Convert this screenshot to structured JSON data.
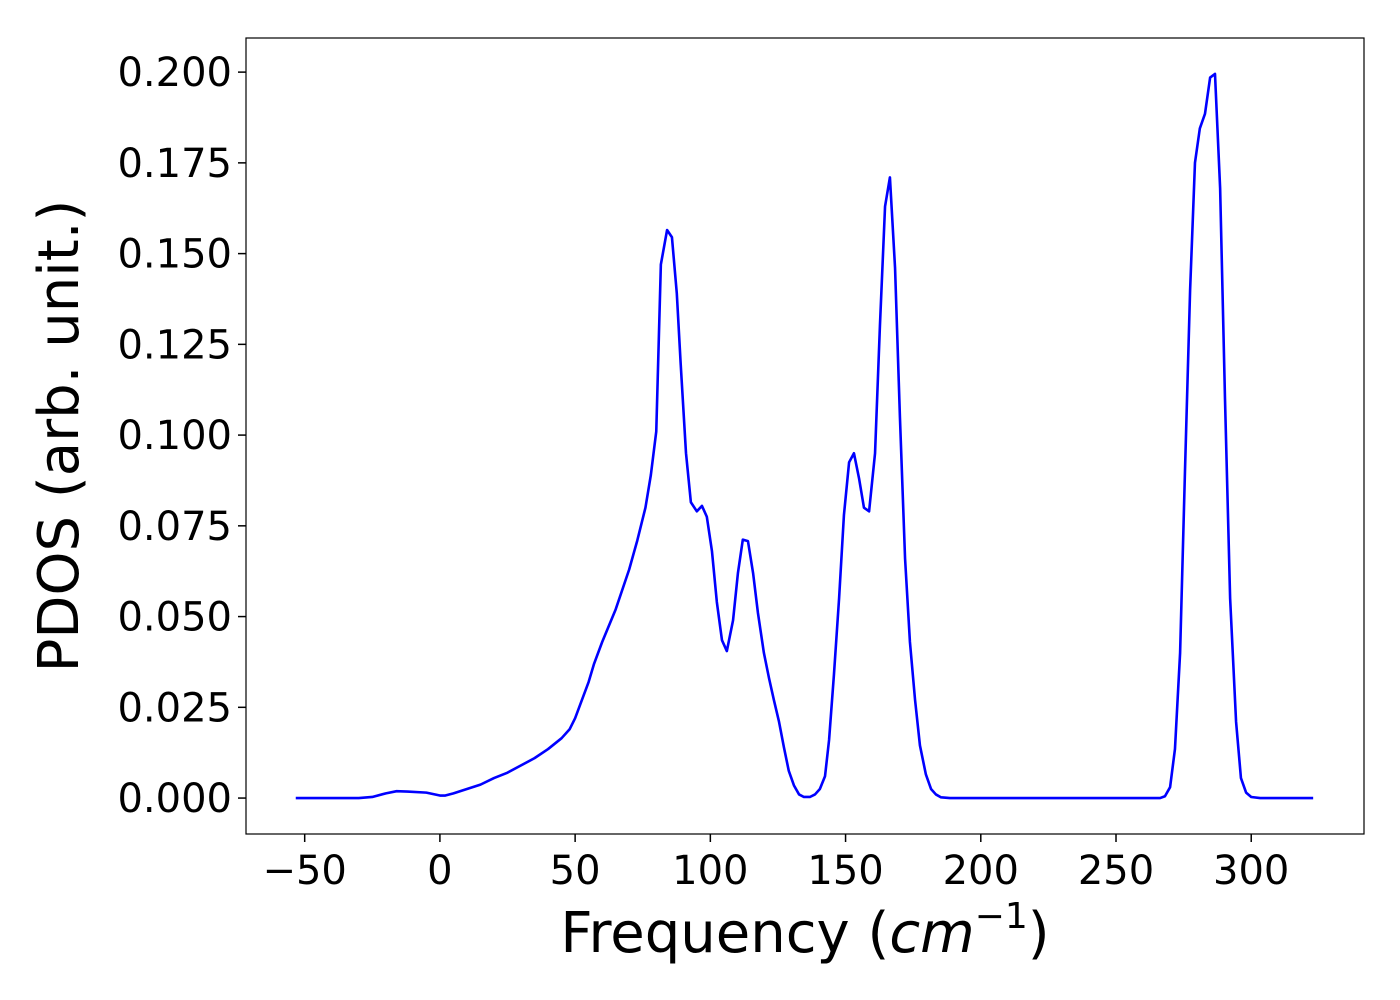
{
  "chart_data": {
    "type": "line",
    "xlabel": [
      "Frequency (",
      "cm",
      "−1",
      ")"
    ],
    "ylabel": "PDOS (arb. unit.)",
    "xlim": [
      -71.7,
      341.7
    ],
    "ylim": [
      -0.0099,
      0.2094
    ],
    "xticks": [
      {
        "value": -50,
        "label": "−50"
      },
      0,
      50,
      100,
      150,
      200,
      250,
      300
    ],
    "yticks": [
      {
        "value": 0,
        "label": "0.000"
      },
      {
        "value": 0.025,
        "label": "0.025"
      },
      {
        "value": 0.05,
        "label": "0.050"
      },
      {
        "value": 0.075,
        "label": "0.075"
      },
      {
        "value": 0.1,
        "label": "0.100"
      },
      {
        "value": 0.125,
        "label": "0.125"
      },
      {
        "value": 0.15,
        "label": "0.150"
      },
      {
        "value": 0.175,
        "label": "0.175"
      },
      {
        "value": 0.2,
        "label": "0.200"
      }
    ],
    "grid": false,
    "series": [
      {
        "color": "#0000ff",
        "x": [
          -53.3,
          -30,
          -25,
          -20,
          -16,
          -12,
          -5,
          0,
          2,
          5,
          10,
          15,
          20,
          25,
          30,
          35,
          40,
          45,
          48,
          50,
          52,
          55,
          57,
          60,
          65,
          70,
          73,
          76,
          78,
          80,
          81.7,
          84,
          85.8,
          87.6,
          89,
          91,
          92.8,
          95,
          96.9,
          98.7,
          100.6,
          102.4,
          104.3,
          106.1,
          108.4,
          110.2,
          112,
          113.9,
          115.8,
          117.6,
          119.8,
          121.7,
          123.5,
          125.4,
          127.2,
          129,
          130.9,
          132.8,
          134.6,
          136.8,
          138.7,
          140.5,
          142.4,
          143.9,
          145.7,
          147.6,
          149.4,
          151.3,
          153.1,
          155,
          156.8,
          158.7,
          160.9,
          162.7,
          164.6,
          166.4,
          168.3,
          170.1,
          172,
          173.8,
          175.7,
          177.5,
          179.7,
          181.6,
          183.4,
          185.3,
          188.6,
          266.3,
          268.1,
          270,
          271.8,
          273.7,
          275.5,
          277.4,
          279.2,
          281,
          282.9,
          284.8,
          286.6,
          288.5,
          290.3,
          292.2,
          294.4,
          296.2,
          298.1,
          300,
          303.3,
          322.9
        ],
        "values": [
          0,
          0,
          0.0003,
          0.0013,
          0.0019,
          0.0018,
          0.0015,
          0.0007,
          0.0007,
          0.0013,
          0.0025,
          0.0037,
          0.0055,
          0.007,
          0.009,
          0.011,
          0.0135,
          0.0165,
          0.019,
          0.022,
          0.026,
          0.032,
          0.037,
          0.043,
          0.052,
          0.063,
          0.071,
          0.08,
          0.089,
          0.101,
          0.147,
          0.1565,
          0.1545,
          0.139,
          0.12,
          0.095,
          0.0815,
          0.079,
          0.0805,
          0.0775,
          0.068,
          0.054,
          0.0435,
          0.0405,
          0.049,
          0.062,
          0.0712,
          0.0708,
          0.062,
          0.051,
          0.04,
          0.033,
          0.027,
          0.021,
          0.014,
          0.0075,
          0.0035,
          0.001,
          0.0003,
          0.0003,
          0.001,
          0.0025,
          0.006,
          0.016,
          0.034,
          0.055,
          0.078,
          0.0925,
          0.095,
          0.088,
          0.08,
          0.079,
          0.095,
          0.13,
          0.163,
          0.171,
          0.146,
          0.105,
          0.066,
          0.043,
          0.027,
          0.0145,
          0.0065,
          0.0025,
          0.001,
          0.0002,
          0,
          0,
          0.0005,
          0.003,
          0.0135,
          0.04,
          0.09,
          0.14,
          0.175,
          0.1845,
          0.1885,
          0.1985,
          0.1995,
          0.168,
          0.11,
          0.055,
          0.021,
          0.0055,
          0.0015,
          0.0003,
          0,
          0
        ]
      }
    ]
  }
}
